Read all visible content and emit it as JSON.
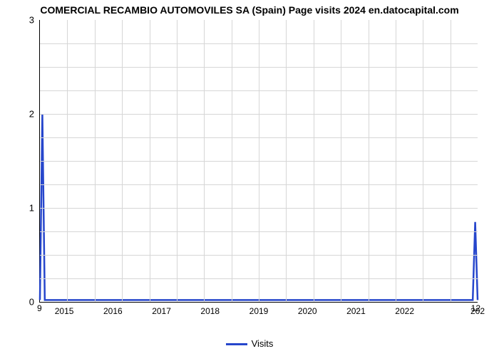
{
  "chart": {
    "type": "line",
    "title": "COMERCIAL RECAMBIO AUTOMOVILES SA (Spain) Page visits 2024 en.datocapital.com",
    "title_fontsize": 14,
    "title_color": "#000000",
    "background_color": "#ffffff",
    "grid_color": "#d6d6d6",
    "axis_color": "#000000",
    "x": {
      "min": 2014.5,
      "max": 2023.5,
      "ticks": [
        2015,
        2016,
        2017,
        2018,
        2019,
        2020,
        2021,
        2022
      ],
      "tick_labels": [
        "2015",
        "2016",
        "2017",
        "2018",
        "2019",
        "2020",
        "2021",
        "2022"
      ],
      "end_label": "202",
      "tick_fontsize": 12,
      "marker_left": "9",
      "marker_right": "12"
    },
    "y": {
      "min": 0,
      "max": 3,
      "ticks": [
        0,
        1,
        2,
        3
      ],
      "tick_labels": [
        "0",
        "1",
        "2",
        "3"
      ],
      "tick_fontsize": 13
    },
    "grid_v_count": 16,
    "grid_h_minor": 12,
    "series": [
      {
        "name": "Visits",
        "color": "#2646cc",
        "line_width": 2.5,
        "points": [
          {
            "x": 2014.5,
            "y": 0.02
          },
          {
            "x": 2014.55,
            "y": 2.0
          },
          {
            "x": 2014.6,
            "y": 0.02
          },
          {
            "x": 2023.4,
            "y": 0.02
          },
          {
            "x": 2023.45,
            "y": 0.85
          },
          {
            "x": 2023.5,
            "y": 0.02
          }
        ]
      }
    ],
    "legend": {
      "label": "Visits",
      "color": "#2646cc",
      "fontsize": 13
    },
    "xlabel": ""
  }
}
